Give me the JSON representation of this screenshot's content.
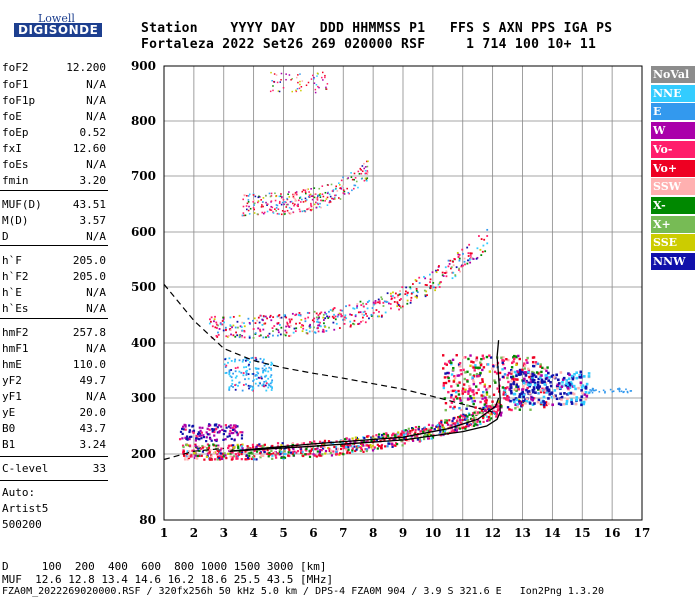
{
  "logo": {
    "line1": "Lowell",
    "line2": "DIGISONDE"
  },
  "header": {
    "labels": "Station    YYYY DAY   DDD HHMMSS P1   FFS S AXN PPS IGA PS",
    "values": "Fortaleza 2022 Set26 269 020000 RSF     1 714 100 10+ 11"
  },
  "params": [
    {
      "name": "foF2",
      "value": "12.200"
    },
    {
      "name": "foF1",
      "value": "N/A"
    },
    {
      "name": "foF1p",
      "value": "N/A"
    },
    {
      "name": "foE",
      "value": "N/A"
    },
    {
      "name": "foEp",
      "value": "0.52"
    },
    {
      "name": "fxI",
      "value": "12.60"
    },
    {
      "name": "foEs",
      "value": "N/A"
    },
    {
      "name": "fmin",
      "value": "3.20"
    },
    {
      "name": "MUF(D)",
      "value": "43.51"
    },
    {
      "name": "M(D)",
      "value": "3.57"
    },
    {
      "name": "D",
      "value": "N/A"
    },
    {
      "name": "h`F",
      "value": "205.0"
    },
    {
      "name": "h`F2",
      "value": "205.0"
    },
    {
      "name": "h`E",
      "value": "N/A"
    },
    {
      "name": "h`Es",
      "value": "N/A"
    },
    {
      "name": "hmF2",
      "value": "257.8"
    },
    {
      "name": "hmF1",
      "value": "N/A"
    },
    {
      "name": "hmE",
      "value": "110.0"
    },
    {
      "name": "yF2",
      "value": "49.7"
    },
    {
      "name": "yF1",
      "value": "N/A"
    },
    {
      "name": "yE",
      "value": "20.0"
    },
    {
      "name": "B0",
      "value": "43.7"
    },
    {
      "name": "B1",
      "value": "3.24"
    },
    {
      "name": "C-level",
      "value": "33"
    }
  ],
  "auto": {
    "line1": "Auto:",
    "line2": "Artist5",
    "line3": "500200"
  },
  "legend": [
    {
      "label": "NoVal",
      "color": "#8c8c8c"
    },
    {
      "label": "NNE",
      "color": "#33ccff"
    },
    {
      "label": "E",
      "color": "#3399ee"
    },
    {
      "label": "W",
      "color": "#aa00aa"
    },
    {
      "label": "Vo-",
      "color": "#ff1d6b"
    },
    {
      "label": "Vo+",
      "color": "#ee0022"
    },
    {
      "label": "SSW",
      "color": "#ffb0b0"
    },
    {
      "label": "X-",
      "color": "#008800"
    },
    {
      "label": "X+",
      "color": "#77bb55"
    },
    {
      "label": "SSE",
      "color": "#cccc00"
    },
    {
      "label": "NNW",
      "color": "#1111aa"
    }
  ],
  "footer": {
    "line1": "D     100  200  400  600  800 1000 1500 3000 [km]",
    "line2": "MUF  12.6 12.8 13.4 14.6 16.2 18.6 25.5 43.5 [MHz]",
    "line3": "FZA0M_2022269020000.RSF / 320fx256h 50 kHz 5.0 km / DPS-4 FZA0M 904 / 3.9 S 321.6 E   Ion2Png 1.3.20"
  },
  "chart_data": {
    "type": "scatter",
    "x_ticks": [
      "1",
      "2",
      "3",
      "4",
      "5",
      "6",
      "7",
      "8",
      "9",
      "10",
      "11",
      "12",
      "13",
      "14",
      "15",
      "16",
      "17"
    ],
    "y_ticks": [
      "80",
      "200",
      "300",
      "400",
      "500",
      "600",
      "700",
      "800",
      "900"
    ],
    "xlim": [
      1,
      17
    ],
    "y_tick_values": [
      80,
      200,
      300,
      400,
      500,
      600,
      700,
      800,
      900
    ],
    "profile_curve": [
      [
        3.2,
        205
      ],
      [
        6,
        214
      ],
      [
        9,
        225
      ],
      [
        11,
        240
      ],
      [
        11.8,
        250
      ],
      [
        12.15,
        262
      ],
      [
        12.25,
        275
      ],
      [
        12.25,
        300
      ],
      [
        12.2,
        340
      ],
      [
        12.15,
        375
      ],
      [
        12.2,
        405
      ]
    ],
    "trace_curve": [
      [
        3.2,
        205
      ],
      [
        6,
        218
      ],
      [
        9,
        230
      ],
      [
        10.5,
        245
      ],
      [
        11.5,
        262
      ],
      [
        12.1,
        285
      ],
      [
        12.2,
        300
      ]
    ],
    "dashed_curve": [
      [
        1,
        505
      ],
      [
        2,
        440
      ],
      [
        3,
        390
      ],
      [
        4,
        368
      ],
      [
        5,
        355
      ],
      [
        6,
        345
      ],
      [
        7,
        336
      ],
      [
        8,
        326
      ],
      [
        9,
        316
      ],
      [
        10,
        303
      ],
      [
        11,
        289
      ],
      [
        12,
        275
      ]
    ],
    "dashed_lower": [
      [
        1,
        190
      ],
      [
        2,
        205
      ],
      [
        3,
        210
      ]
    ]
  }
}
